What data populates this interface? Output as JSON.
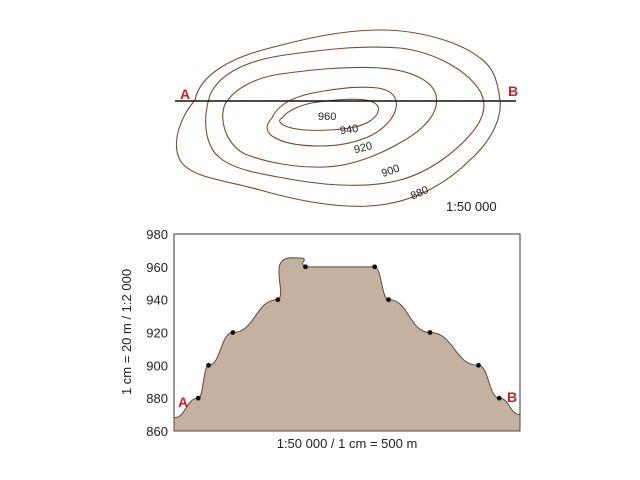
{
  "map": {
    "contour_labels": [
      "960",
      "940",
      "920",
      "900",
      "880"
    ],
    "point_a": "A",
    "point_b": "B",
    "scale": "1:50 000"
  },
  "colors": {
    "contour": "#7a4a30",
    "profile_fill": "#c4b19f",
    "profile_stroke": "#5e4a3c",
    "marker": "#cc1f1f"
  },
  "chart_data": {
    "type": "area",
    "title": "",
    "xlabel": "1:50 000 / 1 cm = 500 m",
    "ylabel": "1 cm = 20 m / 1:2 000",
    "ylim": [
      860,
      980
    ],
    "yticks": [
      860,
      880,
      900,
      920,
      940,
      960,
      980
    ],
    "endpoint_labels": [
      "A",
      "B"
    ],
    "points": [
      {
        "x": 0.07,
        "y": 880
      },
      {
        "x": 0.1,
        "y": 900
      },
      {
        "x": 0.17,
        "y": 920
      },
      {
        "x": 0.3,
        "y": 940
      },
      {
        "x": 0.38,
        "y": 960
      },
      {
        "x": 0.58,
        "y": 960
      },
      {
        "x": 0.62,
        "y": 940
      },
      {
        "x": 0.74,
        "y": 920
      },
      {
        "x": 0.88,
        "y": 900
      },
      {
        "x": 0.94,
        "y": 880
      }
    ]
  }
}
